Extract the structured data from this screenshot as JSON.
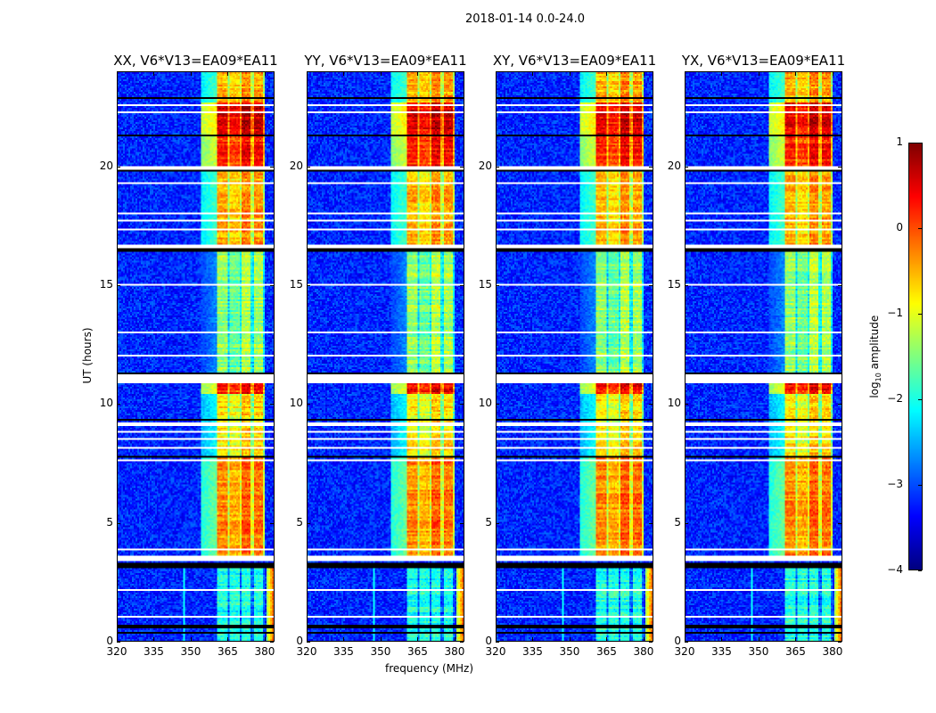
{
  "chart_data": {
    "type": "heatmap",
    "title": "2018-01-14 0.0-24.0",
    "xlabel": "frequency (MHz)",
    "ylabel": "UT (hours)",
    "xlim": [
      320,
      384
    ],
    "ylim": [
      0,
      24
    ],
    "xticks": [
      "320",
      "335",
      "350",
      "365",
      "380"
    ],
    "xtick_values": [
      320,
      335,
      350,
      365,
      380
    ],
    "yticks": [
      "0",
      "5",
      "10",
      "15",
      "20"
    ],
    "ytick_values": [
      0,
      5,
      10,
      15,
      20
    ],
    "panels": [
      {
        "title": "XX, V6*V13=EA09*EA11",
        "seed": 11
      },
      {
        "title": "YY, V6*V13=EA09*EA11",
        "seed": 23
      },
      {
        "title": "XY, V6*V13=EA09*EA11",
        "seed": 37
      },
      {
        "title": "YX, V6*V13=EA09*EA11",
        "seed": 51
      }
    ],
    "colorbar": {
      "label_main": "log",
      "label_sub": "10",
      "label_rest": " amplitude",
      "colormap": "jet",
      "range": [
        -4,
        1
      ],
      "ticks": [
        "1",
        "0",
        "−1",
        "−2",
        "−3",
        "−4"
      ],
      "tick_values": [
        1,
        0,
        -1,
        -2,
        -3,
        -4
      ]
    },
    "background_level": -3.2,
    "bright_band_mhz": [
      360.5,
      380.5
    ],
    "band_gaps_mhz": [
      365.5,
      370.5,
      375.5,
      380.3
    ],
    "band_levels": [
      {
        "hours": [
          0,
          3.2
        ],
        "level": -2.0
      },
      {
        "hours": [
          3.5,
          7.8
        ],
        "level": -0.4
      },
      {
        "hours": [
          7.8,
          10.4
        ],
        "level": -0.9
      },
      {
        "hours": [
          10.4,
          11.0
        ],
        "level": 0.2
      },
      {
        "hours": [
          11.3,
          16.4
        ],
        "level": -1.5
      },
      {
        "hours": [
          16.6,
          19.8
        ],
        "level": -0.6
      },
      {
        "hours": [
          19.9,
          21.3
        ],
        "level": 0.1
      },
      {
        "hours": [
          21.4,
          22.7
        ],
        "level": 0.4
      },
      {
        "hours": [
          22.7,
          24
        ],
        "level": -0.6
      }
    ],
    "flagged_hours": [
      [
        3.4,
        3.6
      ],
      [
        3.85,
        3.9
      ],
      [
        4.1,
        4.15
      ],
      [
        7.6,
        7.68
      ],
      [
        8.1,
        8.15
      ],
      [
        8.5,
        8.55
      ],
      [
        8.8,
        8.85
      ],
      [
        9.1,
        9.2
      ],
      [
        10.85,
        11.25
      ],
      [
        12.0,
        12.05
      ],
      [
        12.5,
        12.55
      ],
      [
        13.0,
        13.05
      ],
      [
        14.0,
        14.05
      ],
      [
        14.6,
        14.65
      ],
      [
        15.0,
        15.05
      ],
      [
        16.6,
        16.7
      ],
      [
        17.3,
        17.4
      ],
      [
        17.7,
        17.75
      ],
      [
        18.0,
        18.05
      ],
      [
        19.3,
        19.35
      ],
      [
        19.9,
        20.0
      ],
      [
        22.3,
        22.35
      ],
      [
        22.6,
        22.65
      ],
      [
        23.3,
        23.35
      ],
      [
        2.1,
        2.15
      ],
      [
        1.0,
        1.05
      ]
    ],
    "zero_hours": [
      [
        3.1,
        3.3
      ],
      [
        0.5,
        0.7
      ],
      [
        0.3,
        0.35
      ],
      [
        16.4,
        16.55
      ],
      [
        21.3,
        21.4
      ],
      [
        3.95,
        4.0
      ],
      [
        7.7,
        7.8
      ],
      [
        11.28,
        11.35
      ],
      [
        19.8,
        19.86
      ],
      [
        9.3,
        9.35
      ],
      [
        23.6,
        23.65
      ],
      [
        22.9,
        22.95
      ]
    ]
  }
}
